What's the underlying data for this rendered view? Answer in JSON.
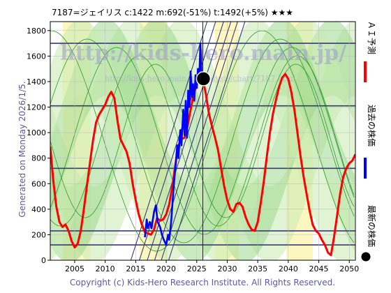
{
  "chart_data": {
    "type": "line",
    "title": "7187=ジェイリス    c:1422   m:692(-51%)   t:1492(+5%)   ★★★",
    "xlim": [
      2001,
      2051
    ],
    "ylim": [
      0,
      1870
    ],
    "x_ticks": [
      2005,
      2010,
      2015,
      2020,
      2025,
      2030,
      2035,
      2040,
      2045,
      2050
    ],
    "y_ticks": [
      0,
      200,
      400,
      600,
      800,
      1000,
      1200,
      1400,
      1600,
      1800
    ],
    "horizontal_lines": [
      1700,
      1210,
      720,
      230,
      120
    ],
    "vertical_line_x": 2026,
    "current_point": {
      "x": 2026.1,
      "y": 1422
    },
    "watermark": "http://kids-hero.main.jp/",
    "watermark_small": "http://kids-hero.main.jp/analysis/chart/7187.html",
    "generated_text": "Generated on Monday 2026/1/5.",
    "footer": "Copyright (c) Kids-Hero Research Institute. All Rights Reserved.",
    "legend": [
      {
        "label": "ＡＩ予測",
        "color": "#ff0000"
      },
      {
        "label": "過去の株価",
        "color": "#0000ff"
      },
      {
        "label": "最新の株価",
        "color": "#000000"
      }
    ],
    "series": [
      {
        "name": "ＡＩ予測",
        "color": "#ff0000",
        "points": [
          [
            2001,
            890
          ],
          [
            2001.5,
            620
          ],
          [
            2002,
            420
          ],
          [
            2002.5,
            300
          ],
          [
            2003,
            260
          ],
          [
            2003.5,
            280
          ],
          [
            2004,
            230
          ],
          [
            2004.5,
            150
          ],
          [
            2005,
            100
          ],
          [
            2005.5,
            130
          ],
          [
            2006,
            230
          ],
          [
            2006.5,
            400
          ],
          [
            2007,
            580
          ],
          [
            2007.5,
            760
          ],
          [
            2008,
            940
          ],
          [
            2008.5,
            1080
          ],
          [
            2009,
            1140
          ],
          [
            2009.5,
            1180
          ],
          [
            2010,
            1220
          ],
          [
            2010.5,
            1280
          ],
          [
            2011,
            1320
          ],
          [
            2011.5,
            1270
          ],
          [
            2012,
            1100
          ],
          [
            2012.5,
            950
          ],
          [
            2013,
            900
          ],
          [
            2013.5,
            850
          ],
          [
            2014,
            760
          ],
          [
            2014.5,
            600
          ],
          [
            2015,
            470
          ],
          [
            2015.5,
            360
          ],
          [
            2016,
            280
          ],
          [
            2016.5,
            220
          ],
          [
            2017,
            210
          ],
          [
            2017.5,
            200
          ],
          [
            2018,
            240
          ],
          [
            2018.5,
            330
          ],
          [
            2019,
            310
          ],
          [
            2019.5,
            320
          ],
          [
            2020,
            360
          ],
          [
            2020.5,
            440
          ],
          [
            2021,
            580
          ],
          [
            2021.5,
            750
          ],
          [
            2022,
            900
          ],
          [
            2022.5,
            950
          ],
          [
            2023,
            960
          ],
          [
            2023.5,
            1050
          ],
          [
            2024,
            1180
          ],
          [
            2024.5,
            1300
          ],
          [
            2025,
            1380
          ],
          [
            2025.5,
            1440
          ],
          [
            2026,
            1420
          ],
          [
            2026.5,
            1300
          ],
          [
            2027,
            1150
          ],
          [
            2027.5,
            1050
          ],
          [
            2028,
            960
          ],
          [
            2028.5,
            860
          ],
          [
            2029,
            720
          ],
          [
            2029.5,
            580
          ],
          [
            2030,
            470
          ],
          [
            2030.5,
            400
          ],
          [
            2031,
            380
          ],
          [
            2031.5,
            440
          ],
          [
            2032,
            450
          ],
          [
            2032.5,
            420
          ],
          [
            2033,
            340
          ],
          [
            2033.5,
            280
          ],
          [
            2034,
            240
          ],
          [
            2034.5,
            230
          ],
          [
            2035,
            300
          ],
          [
            2035.5,
            450
          ],
          [
            2036,
            620
          ],
          [
            2036.5,
            820
          ],
          [
            2037,
            1000
          ],
          [
            2037.5,
            1150
          ],
          [
            2038,
            1260
          ],
          [
            2038.5,
            1360
          ],
          [
            2039,
            1430
          ],
          [
            2039.5,
            1460
          ],
          [
            2040,
            1420
          ],
          [
            2040.5,
            1320
          ],
          [
            2041,
            1180
          ],
          [
            2041.5,
            1000
          ],
          [
            2042,
            820
          ],
          [
            2042.5,
            660
          ],
          [
            2043,
            520
          ],
          [
            2043.5,
            390
          ],
          [
            2044,
            280
          ],
          [
            2044.5,
            230
          ],
          [
            2045,
            210
          ],
          [
            2045.5,
            160
          ],
          [
            2046,
            120
          ],
          [
            2046.5,
            60
          ],
          [
            2047,
            40
          ],
          [
            2047.5,
            180
          ],
          [
            2048,
            350
          ],
          [
            2048.5,
            520
          ],
          [
            2049,
            650
          ],
          [
            2049.5,
            720
          ],
          [
            2050,
            760
          ],
          [
            2050.5,
            780
          ],
          [
            2051,
            830
          ]
        ]
      },
      {
        "name": "過去の株価",
        "color": "#0000ff",
        "points": [
          [
            2016.5,
            180
          ],
          [
            2016.8,
            320
          ],
          [
            2017,
            250
          ],
          [
            2017.3,
            300
          ],
          [
            2017.6,
            250
          ],
          [
            2018,
            380
          ],
          [
            2018.3,
            430
          ],
          [
            2018.6,
            300
          ],
          [
            2019,
            260
          ],
          [
            2019.3,
            200
          ],
          [
            2019.6,
            160
          ],
          [
            2020,
            120
          ],
          [
            2020.3,
            200
          ],
          [
            2020.5,
            160
          ],
          [
            2020.8,
            300
          ],
          [
            2021,
            430
          ],
          [
            2021.3,
            620
          ],
          [
            2021.5,
            720
          ],
          [
            2021.8,
            900
          ],
          [
            2022,
            800
          ],
          [
            2022.3,
            1020
          ],
          [
            2022.5,
            900
          ],
          [
            2022.8,
            1180
          ],
          [
            2023,
            980
          ],
          [
            2023.2,
            1250
          ],
          [
            2023.4,
            960
          ],
          [
            2023.6,
            1330
          ],
          [
            2023.8,
            1200
          ],
          [
            2024,
            1480
          ],
          [
            2024.2,
            1280
          ],
          [
            2024.4,
            1380
          ],
          [
            2024.6,
            1250
          ],
          [
            2024.8,
            1450
          ],
          [
            2025,
            1350
          ],
          [
            2025.2,
            1500
          ],
          [
            2025.4,
            1400
          ],
          [
            2025.6,
            1700
          ],
          [
            2025.8,
            1450
          ],
          [
            2026.1,
            1422
          ]
        ]
      }
    ]
  }
}
